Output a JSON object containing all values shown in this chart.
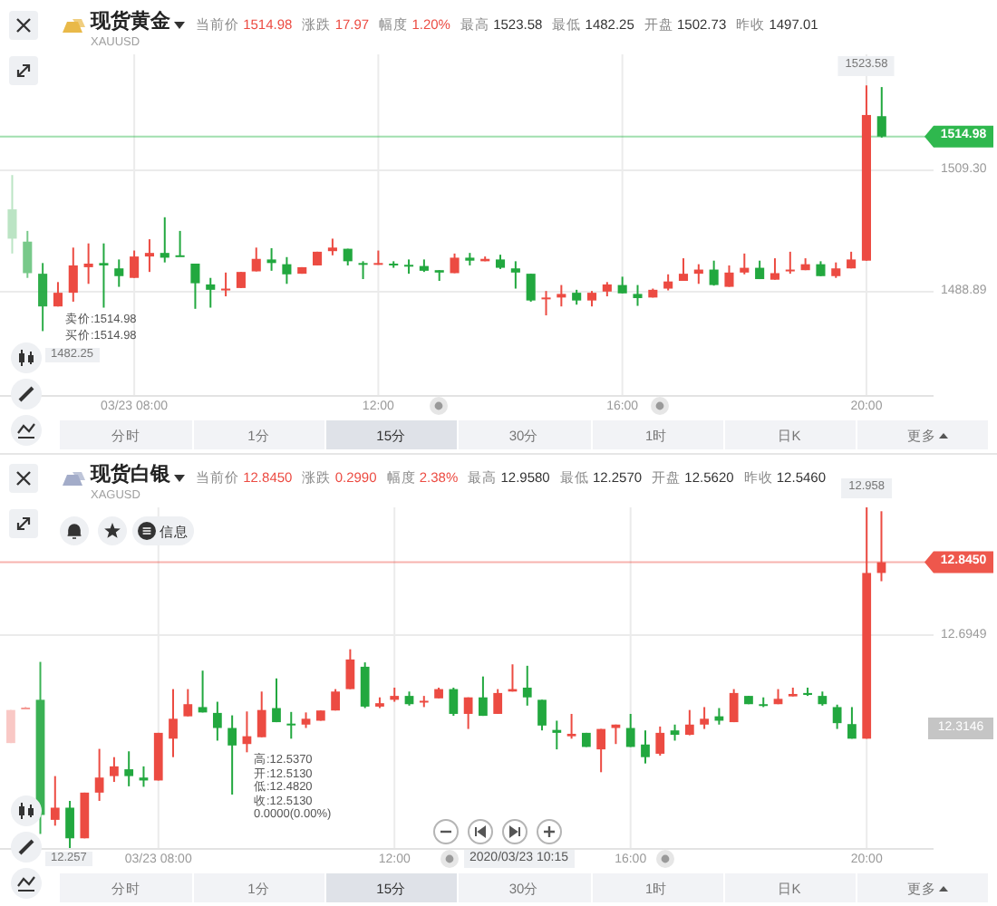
{
  "chart_data": [
    {
      "type": "candlestick",
      "title": "现货黄金",
      "subtitle": "XAUUSD",
      "x": [
        "2020-03-23T06:00",
        "2020-03-23T06:15",
        "2020-03-23T06:30",
        "2020-03-23T06:45",
        "2020-03-23T07:00",
        "2020-03-23T07:15",
        "2020-03-23T07:30",
        "2020-03-23T07:45",
        "2020-03-23T08:00",
        "2020-03-23T08:15",
        "2020-03-23T08:30",
        "2020-03-23T08:45",
        "2020-03-23T09:00",
        "2020-03-23T09:15",
        "2020-03-23T09:30",
        "2020-03-23T09:45",
        "2020-03-23T10:00",
        "2020-03-23T10:15",
        "2020-03-23T10:30",
        "2020-03-23T10:45",
        "2020-03-23T11:00",
        "2020-03-23T11:15",
        "2020-03-23T11:30",
        "2020-03-23T11:45",
        "2020-03-23T12:00",
        "2020-03-23T12:15",
        "2020-03-23T12:30",
        "2020-03-23T12:45",
        "2020-03-23T13:00",
        "2020-03-23T13:15",
        "2020-03-23T13:30",
        "2020-03-23T13:45",
        "2020-03-23T14:00",
        "2020-03-23T14:15",
        "2020-03-23T14:30",
        "2020-03-23T14:45",
        "2020-03-23T15:00",
        "2020-03-23T15:15",
        "2020-03-23T15:30",
        "2020-03-23T15:45",
        "2020-03-23T16:00",
        "2020-03-23T16:15",
        "2020-03-23T16:30",
        "2020-03-23T16:45",
        "2020-03-23T17:00",
        "2020-03-23T17:15",
        "2020-03-23T17:30",
        "2020-03-23T17:45",
        "2020-03-23T18:00",
        "2020-03-23T18:15",
        "2020-03-23T18:30",
        "2020-03-23T18:45",
        "2020-03-23T19:00",
        "2020-03-23T19:15",
        "2020-03-23T19:30",
        "2020-03-23T19:45",
        "2020-03-23T20:00",
        "2020-03-23T20:15"
      ],
      "ohlc": [
        [
          1502.73,
          1508.5,
          1495.3,
          1497.8
        ],
        [
          1497.3,
          1499.1,
          1491.2,
          1492.0
        ],
        [
          1491.9,
          1493.7,
          1482.25,
          1486.4
        ],
        [
          1486.4,
          1490.5,
          1486.4,
          1488.7
        ],
        [
          1488.7,
          1496.3,
          1487.2,
          1493.3
        ],
        [
          1493.0,
          1497.0,
          1490.2,
          1493.6
        ],
        [
          1493.7,
          1497.0,
          1486.2,
          1493.3
        ],
        [
          1492.8,
          1494.3,
          1489.7,
          1491.5
        ],
        [
          1491.2,
          1495.8,
          1491.2,
          1494.8
        ],
        [
          1494.8,
          1497.7,
          1492.2,
          1495.4
        ],
        [
          1495.4,
          1501.4,
          1493.8,
          1494.6
        ],
        [
          1495.0,
          1499.1,
          1494.8,
          1494.8
        ],
        [
          1493.6,
          1493.6,
          1486.0,
          1490.3
        ],
        [
          1490.1,
          1491.2,
          1486.2,
          1489.2
        ],
        [
          1489.1,
          1492.1,
          1488.1,
          1489.4
        ],
        [
          1489.5,
          1492.2,
          1489.5,
          1492.2
        ],
        [
          1492.3,
          1496.3,
          1492.3,
          1494.4
        ],
        [
          1494.3,
          1496.2,
          1492.4,
          1493.7
        ],
        [
          1493.5,
          1494.7,
          1490.2,
          1491.8
        ],
        [
          1491.9,
          1493.0,
          1491.9,
          1493.0
        ],
        [
          1493.3,
          1495.6,
          1493.3,
          1495.6
        ],
        [
          1495.7,
          1497.8,
          1495.0,
          1496.3
        ],
        [
          1496.1,
          1496.1,
          1493.3,
          1494.0
        ],
        [
          1493.7,
          1494.0,
          1491.0,
          1493.4
        ],
        [
          1493.4,
          1495.8,
          1493.4,
          1493.7
        ],
        [
          1493.6,
          1494.0,
          1492.9,
          1493.3
        ],
        [
          1493.4,
          1494.3,
          1491.9,
          1493.3
        ],
        [
          1493.2,
          1494.3,
          1492.2,
          1492.4
        ],
        [
          1492.5,
          1492.5,
          1490.7,
          1492.1
        ],
        [
          1492.0,
          1495.3,
          1492.0,
          1494.6
        ],
        [
          1494.6,
          1495.4,
          1493.3,
          1494.1
        ],
        [
          1494.0,
          1494.8,
          1494.0,
          1494.4
        ],
        [
          1494.3,
          1495.1,
          1492.7,
          1492.9
        ],
        [
          1492.8,
          1494.0,
          1489.4,
          1492.1
        ],
        [
          1491.9,
          1491.9,
          1487.2,
          1487.4
        ],
        [
          1487.6,
          1489.0,
          1484.9,
          1487.9
        ],
        [
          1487.9,
          1490.0,
          1486.4,
          1488.5
        ],
        [
          1488.7,
          1489.2,
          1486.7,
          1487.4
        ],
        [
          1487.4,
          1489.0,
          1486.4,
          1488.7
        ],
        [
          1488.9,
          1490.5,
          1488.1,
          1490.1
        ],
        [
          1490.0,
          1491.4,
          1488.6,
          1488.6
        ],
        [
          1488.5,
          1490.0,
          1486.5,
          1487.8
        ],
        [
          1487.9,
          1489.4,
          1487.9,
          1489.2
        ],
        [
          1489.4,
          1491.8,
          1489.1,
          1490.6
        ],
        [
          1490.7,
          1494.5,
          1490.7,
          1491.9
        ],
        [
          1491.9,
          1493.5,
          1490.2,
          1492.6
        ],
        [
          1492.6,
          1494.1,
          1489.9,
          1490.0
        ],
        [
          1489.7,
          1493.3,
          1489.7,
          1492.1
        ],
        [
          1492.1,
          1495.3,
          1491.8,
          1492.9
        ],
        [
          1492.9,
          1494.1,
          1491.0,
          1491.0
        ],
        [
          1490.9,
          1494.5,
          1490.9,
          1492.0
        ],
        [
          1492.3,
          1495.6,
          1491.9,
          1492.6
        ],
        [
          1492.5,
          1494.5,
          1492.5,
          1493.5
        ],
        [
          1493.5,
          1494.0,
          1491.5,
          1491.5
        ],
        [
          1491.5,
          1493.8,
          1491.2,
          1492.8
        ],
        [
          1492.8,
          1495.6,
          1492.8,
          1494.3
        ],
        [
          1494.1,
          1523.58,
          1494.1,
          1518.6
        ],
        [
          1518.4,
          1523.3,
          1514.8,
          1514.98
        ]
      ],
      "xlim": [
        "2020-03-23T05:48",
        "2020-03-23T21:06"
      ],
      "xticks": [
        {
          "value": "2020-03-23T08:00",
          "label": "03/23 08:00"
        },
        {
          "value": "2020-03-23T12:00",
          "label": "12:00"
        },
        {
          "value": "2020-03-23T16:00",
          "label": "16:00"
        },
        {
          "value": "2020-03-23T20:00",
          "label": "20:00"
        }
      ],
      "ylim": [
        1471.5,
        1528.8
      ],
      "yticks": [
        {
          "value": 1509.3,
          "label": "1509.30"
        },
        {
          "value": 1488.89,
          "label": "1488.89"
        }
      ],
      "grid": true,
      "ref_lines": [
        {
          "axis": "y",
          "value": 1514.98,
          "label": "1514.98",
          "color": "#2fb84e"
        }
      ],
      "annotations": [
        "当前价 1514.98",
        "涨跌 17.97",
        "幅度 1.20%",
        "最高 1523.58",
        "最低 1482.25",
        "开盘 1502.73",
        "昨收 1497.01",
        "卖价:1514.98",
        "买价:1514.98",
        "分时",
        "1分",
        "15分",
        "30分",
        "1时",
        "日K",
        "更多",
        {
          "text": "1523.58",
          "x": "2020-03-23T20:00",
          "y": 1523.58
        },
        {
          "text": "1482.25",
          "x": "2020-03-23T06:30",
          "y": 1482.25
        }
      ]
    },
    {
      "type": "candlestick",
      "title": "现货白银",
      "subtitle": "XAGUSD",
      "x": [
        "2020-03-23T05:30",
        "2020-03-23T05:45",
        "2020-03-23T06:00",
        "2020-03-23T06:15",
        "2020-03-23T06:30",
        "2020-03-23T06:45",
        "2020-03-23T07:00",
        "2020-03-23T07:15",
        "2020-03-23T07:30",
        "2020-03-23T07:45",
        "2020-03-23T08:00",
        "2020-03-23T08:15",
        "2020-03-23T08:30",
        "2020-03-23T08:45",
        "2020-03-23T09:00",
        "2020-03-23T09:15",
        "2020-03-23T09:30",
        "2020-03-23T09:45",
        "2020-03-23T10:00",
        "2020-03-23T10:15",
        "2020-03-23T10:30",
        "2020-03-23T10:45",
        "2020-03-23T11:00",
        "2020-03-23T11:15",
        "2020-03-23T11:30",
        "2020-03-23T11:45",
        "2020-03-23T12:00",
        "2020-03-23T12:15",
        "2020-03-23T12:30",
        "2020-03-23T12:45",
        "2020-03-23T13:00",
        "2020-03-23T13:15",
        "2020-03-23T13:30",
        "2020-03-23T13:45",
        "2020-03-23T14:00",
        "2020-03-23T14:15",
        "2020-03-23T14:30",
        "2020-03-23T14:45",
        "2020-03-23T15:00",
        "2020-03-23T15:15",
        "2020-03-23T15:30",
        "2020-03-23T15:45",
        "2020-03-23T16:00",
        "2020-03-23T16:15",
        "2020-03-23T16:30",
        "2020-03-23T16:45",
        "2020-03-23T17:00",
        "2020-03-23T17:15",
        "2020-03-23T17:30",
        "2020-03-23T17:45",
        "2020-03-23T18:00",
        "2020-03-23T18:15",
        "2020-03-23T18:30",
        "2020-03-23T18:45",
        "2020-03-23T19:00",
        "2020-03-23T19:15",
        "2020-03-23T19:30",
        "2020-03-23T19:45",
        "2020-03-23T20:00",
        "2020-03-23T20:15"
      ],
      "ohlc": [
        [
          12.473,
          12.541,
          12.473,
          12.541
        ],
        [
          12.545,
          12.547,
          12.545,
          12.546
        ],
        [
          12.562,
          12.64,
          12.286,
          12.325
        ],
        [
          12.315,
          12.405,
          12.303,
          12.34
        ],
        [
          12.34,
          12.354,
          12.257,
          12.277
        ],
        [
          12.277,
          12.371,
          12.277,
          12.371
        ],
        [
          12.371,
          12.461,
          12.354,
          12.402
        ],
        [
          12.405,
          12.444,
          12.393,
          12.425
        ],
        [
          12.419,
          12.456,
          12.384,
          12.405
        ],
        [
          12.402,
          12.425,
          12.383,
          12.396
        ],
        [
          12.396,
          12.494,
          12.396,
          12.494
        ],
        [
          12.482,
          12.584,
          12.444,
          12.523
        ],
        [
          12.528,
          12.584,
          12.528,
          12.553
        ],
        [
          12.547,
          12.622,
          12.536,
          12.536
        ],
        [
          12.535,
          12.558,
          12.478,
          12.504
        ],
        [
          12.504,
          12.53,
          12.367,
          12.468
        ],
        [
          12.471,
          12.538,
          12.454,
          12.487
        ],
        [
          12.485,
          12.579,
          12.485,
          12.541
        ],
        [
          12.545,
          12.606,
          12.516,
          12.516
        ],
        [
          12.513,
          12.537,
          12.482,
          12.513
        ],
        [
          12.511,
          12.536,
          12.504,
          12.523
        ],
        [
          12.519,
          12.54,
          12.519,
          12.54
        ],
        [
          12.54,
          12.584,
          12.54,
          12.579
        ],
        [
          12.584,
          12.666,
          12.584,
          12.645
        ],
        [
          12.63,
          12.639,
          12.545,
          12.548
        ],
        [
          12.548,
          12.567,
          12.545,
          12.555
        ],
        [
          12.562,
          12.587,
          12.558,
          12.57
        ],
        [
          12.57,
          12.579,
          12.55,
          12.553
        ],
        [
          12.557,
          12.57,
          12.547,
          12.56
        ],
        [
          12.565,
          12.587,
          12.565,
          12.584
        ],
        [
          12.584,
          12.587,
          12.529,
          12.533
        ],
        [
          12.533,
          12.567,
          12.502,
          12.567
        ],
        [
          12.567,
          12.61,
          12.529,
          12.529
        ],
        [
          12.533,
          12.584,
          12.533,
          12.576
        ],
        [
          12.579,
          12.635,
          12.579,
          12.584
        ],
        [
          12.587,
          12.632,
          12.55,
          12.567
        ],
        [
          12.562,
          12.562,
          12.499,
          12.509
        ],
        [
          12.5,
          12.519,
          12.46,
          12.494
        ],
        [
          12.487,
          12.533,
          12.482,
          12.492
        ],
        [
          12.494,
          12.494,
          12.465,
          12.465
        ],
        [
          12.46,
          12.502,
          12.413,
          12.502
        ],
        [
          12.504,
          12.511,
          12.471,
          12.511
        ],
        [
          12.504,
          12.533,
          12.465,
          12.465
        ],
        [
          12.47,
          12.499,
          12.431,
          12.444
        ],
        [
          12.451,
          12.507,
          12.447,
          12.494
        ],
        [
          12.499,
          12.511,
          12.478,
          12.49
        ],
        [
          12.49,
          12.541,
          12.489,
          12.511
        ],
        [
          12.511,
          12.547,
          12.502,
          12.523
        ],
        [
          12.528,
          12.545,
          12.511,
          12.519
        ],
        [
          12.516,
          12.584,
          12.516,
          12.576
        ],
        [
          12.57,
          12.57,
          12.553,
          12.553
        ],
        [
          12.553,
          12.567,
          12.547,
          12.55
        ],
        [
          12.553,
          12.584,
          12.553,
          12.564
        ],
        [
          12.569,
          12.587,
          12.569,
          12.574
        ],
        [
          12.576,
          12.587,
          12.57,
          12.572
        ],
        [
          12.57,
          12.579,
          12.55,
          12.553
        ],
        [
          12.547,
          12.552,
          12.502,
          12.514
        ],
        [
          12.512,
          12.547,
          12.482,
          12.482
        ],
        [
          12.482,
          12.958,
          12.482,
          12.823
        ],
        [
          12.823,
          12.95,
          12.806,
          12.845
        ]
      ],
      "xlim": [
        "2020-03-23T05:19",
        "2020-03-23T21:08"
      ],
      "xticks": [
        {
          "value": "2020-03-23T08:00",
          "label": "03/23 08:00"
        },
        {
          "value": "2020-03-23T12:00",
          "label": "12:00"
        },
        {
          "value": "2020-03-23T16:00",
          "label": "16:00"
        },
        {
          "value": "2020-03-23T20:00",
          "label": "20:00"
        }
      ],
      "grid": true,
      "ref_lines": [
        {
          "axis": "y",
          "value": 12.845,
          "label": "12.8450",
          "color": "#ee574c"
        },
        {
          "axis": "y",
          "value": 12.6949,
          "label": "12.6949"
        }
      ],
      "annotations": [
        "当前价 12.8450",
        "涨跌 0.2990",
        "幅度 2.38%",
        "最高 12.9580",
        "最低 12.2570",
        "开盘 12.5620",
        "昨收 12.5460",
        "信息",
        "高:12.5370",
        "开:12.5130",
        "低:12.4820",
        "收:12.5130",
        "0.0000(0.00%)",
        "2020/03/23 10:15",
        "12.3146",
        "分时",
        "1分",
        "15分",
        "30分",
        "1时",
        "日K",
        "更多",
        {
          "text": "12.958",
          "x": "2020-03-23T20:00",
          "y": 12.958
        },
        {
          "text": "12.257",
          "x": "2020-03-23T06:30",
          "y": 12.257
        }
      ]
    }
  ]
}
